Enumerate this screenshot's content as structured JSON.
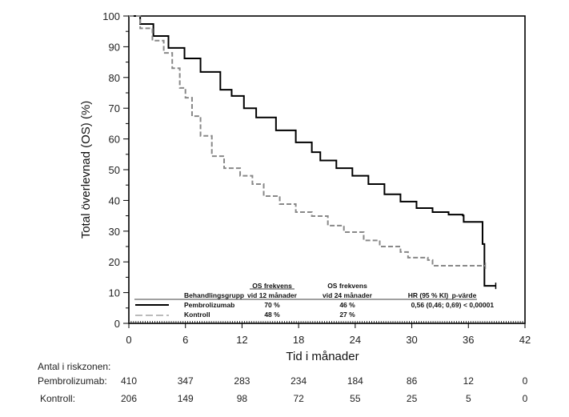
{
  "chart_data": {
    "type": "line",
    "subtype": "kaplan-meier",
    "title": "",
    "xlabel": "Tid i månader",
    "ylabel": "Total överlevnad (OS) (%)",
    "xlim": [
      0,
      42
    ],
    "ylim": [
      0,
      100
    ],
    "x_ticks": [
      0,
      6,
      12,
      18,
      24,
      30,
      36,
      42
    ],
    "y_ticks": [
      0,
      10,
      20,
      30,
      40,
      50,
      60,
      70,
      80,
      90,
      100
    ],
    "grid": false,
    "series": [
      {
        "name": "Pembrolizumab",
        "color": "#000000",
        "style": "solid",
        "points": [
          [
            0,
            100
          ],
          [
            1.2,
            97.4
          ],
          [
            2.6,
            93.5
          ],
          [
            4.2,
            89.6
          ],
          [
            5.9,
            86.2
          ],
          [
            7.6,
            81.8
          ],
          [
            9.7,
            76
          ],
          [
            10.9,
            74
          ],
          [
            12.2,
            70
          ],
          [
            13.5,
            67
          ],
          [
            15.6,
            62.8
          ],
          [
            17.7,
            58.9
          ],
          [
            19.4,
            55.7
          ],
          [
            20.3,
            53
          ],
          [
            22,
            50.5
          ],
          [
            23.7,
            48
          ],
          [
            25.4,
            45.3
          ],
          [
            27.1,
            42
          ],
          [
            28.8,
            39.6
          ],
          [
            30.5,
            37.5
          ],
          [
            32.2,
            36.2
          ],
          [
            33.9,
            35.4
          ],
          [
            35.4,
            35.1
          ],
          [
            35.5,
            33
          ],
          [
            37.4,
            33
          ],
          [
            37.5,
            25.8
          ],
          [
            37.7,
            24.5
          ],
          [
            37.7,
            12.2
          ],
          [
            38.9,
            12.2
          ]
        ]
      },
      {
        "name": "Kontroll",
        "color": "#888888",
        "style": "dashed",
        "points": [
          [
            0,
            100
          ],
          [
            1.2,
            96
          ],
          [
            2.5,
            92
          ],
          [
            3.7,
            88
          ],
          [
            4.6,
            83
          ],
          [
            5.4,
            76.6
          ],
          [
            6,
            73.4
          ],
          [
            6.7,
            67.4
          ],
          [
            7.6,
            61
          ],
          [
            8.8,
            54.4
          ],
          [
            10.1,
            50.5
          ],
          [
            11.8,
            48
          ],
          [
            13.1,
            45.3
          ],
          [
            14.3,
            41.4
          ],
          [
            16,
            38.8
          ],
          [
            17.7,
            36.2
          ],
          [
            19.4,
            34.9
          ],
          [
            21.1,
            31.8
          ],
          [
            22.8,
            29.7
          ],
          [
            24.9,
            27
          ],
          [
            26.6,
            25
          ],
          [
            28.8,
            23.2
          ],
          [
            29.6,
            21.4
          ],
          [
            31.7,
            20.6
          ],
          [
            32.2,
            18.75
          ],
          [
            37.8,
            18.75
          ]
        ]
      }
    ],
    "legend": {
      "placement": "bottom-left",
      "headers": {
        "group": "Behandlingsgrupp",
        "os12_line1": "OS frekvens",
        "os12_line2": "vid 12 månader",
        "os24_line1": "OS frekvens",
        "os24_line2": "vid 24 månader",
        "hr": "HR (95 % KI)",
        "p": "p-värde"
      },
      "rows": [
        {
          "name": "Pembrolizumab",
          "os12": "70 %",
          "os24": "46 %",
          "hr": "0,56 (0,46; 0,69)",
          "p": "< 0,00001"
        },
        {
          "name": "Kontroll",
          "os12": "48 %",
          "os24": "27 %",
          "hr": "",
          "p": ""
        }
      ]
    },
    "risk_table": {
      "title": "Antal i riskzonen:",
      "rows": [
        {
          "label": "Pembrolizumab:",
          "values": [
            "410",
            "347",
            "283",
            "234",
            "184",
            "86",
            "12",
            "0"
          ]
        },
        {
          "label": "Kontroll:",
          "values": [
            "206",
            "149",
            "98",
            "72",
            "55",
            "25",
            "5",
            "0"
          ]
        }
      ]
    }
  }
}
